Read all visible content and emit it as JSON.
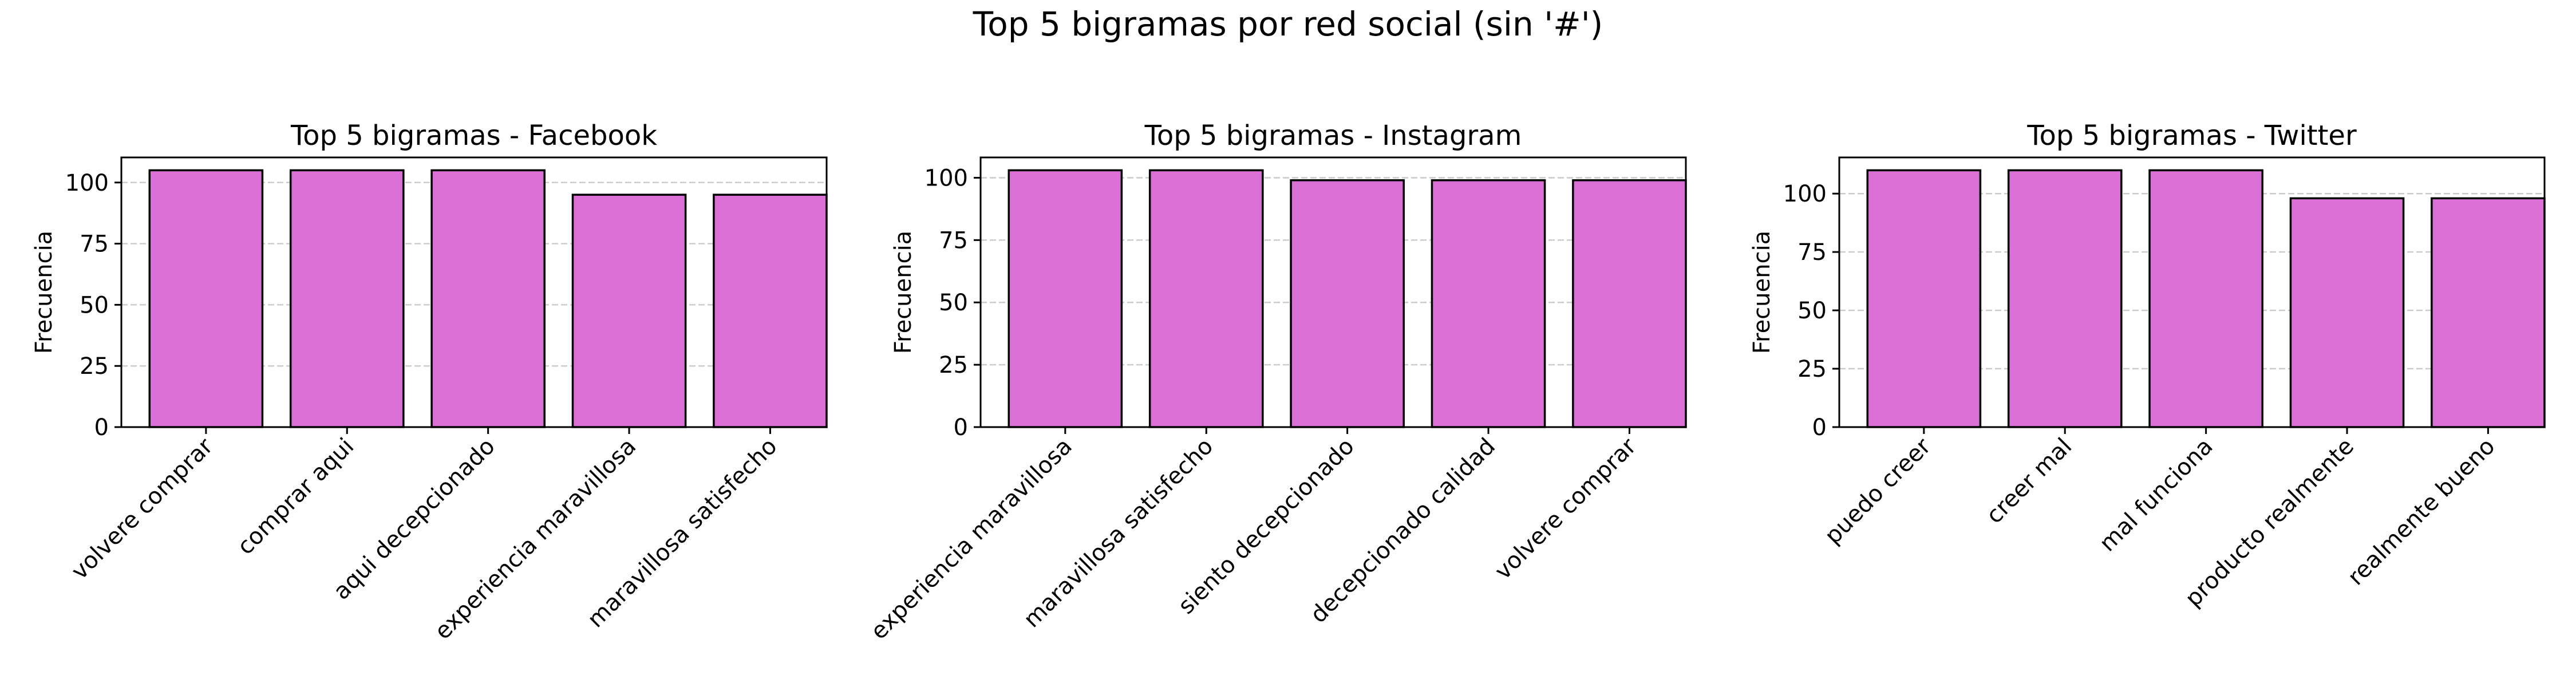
{
  "figure": {
    "suptitle": "Top 5 bigramas por red social (sin '#')"
  },
  "style": {
    "bar_color": "#da70d6",
    "bar_edge_color": "#000000",
    "grid_color": "#cccccc",
    "grid": "y-dashed"
  },
  "chart_data": [
    {
      "type": "bar",
      "title": "Top 5 bigramas - Facebook",
      "xlabel": "",
      "ylabel": "Frecuencia",
      "categories": [
        "volvere comprar",
        "comprar aqui",
        "aqui decepcionado",
        "experiencia maravillosa",
        "maravillosa satisfecho"
      ],
      "values": [
        105,
        105,
        105,
        95,
        95
      ],
      "ylim": [
        0,
        110.25
      ],
      "yticks": [
        0,
        25,
        50,
        75,
        100
      ]
    },
    {
      "type": "bar",
      "title": "Top 5 bigramas - Instagram",
      "xlabel": "",
      "ylabel": "Frecuencia",
      "categories": [
        "experiencia maravillosa",
        "maravillosa satisfecho",
        "siento decepcionado",
        "decepcionado calidad",
        "volvere comprar"
      ],
      "values": [
        103,
        103,
        99,
        99,
        99
      ],
      "ylim": [
        0,
        108.15
      ],
      "yticks": [
        0,
        25,
        50,
        75,
        100
      ]
    },
    {
      "type": "bar",
      "title": "Top 5 bigramas - Twitter",
      "xlabel": "",
      "ylabel": "Frecuencia",
      "categories": [
        "puedo creer",
        "creer mal",
        "mal funciona",
        "producto realmente",
        "realmente bueno"
      ],
      "values": [
        110,
        110,
        110,
        98,
        98
      ],
      "ylim": [
        0,
        115.5
      ],
      "yticks": [
        0,
        25,
        50,
        75,
        100
      ]
    }
  ]
}
